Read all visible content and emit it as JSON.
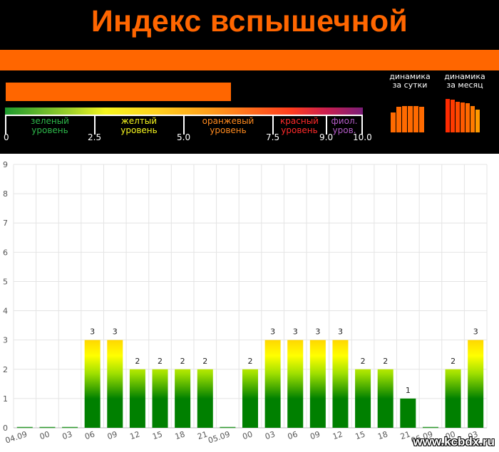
{
  "header": {
    "title": "Индекс вспышечной активности",
    "scale": {
      "levels": [
        {
          "label1": "зеленый",
          "label2": "уровень",
          "color": "#2db84a"
        },
        {
          "label1": "желтый",
          "label2": "уровень",
          "color": "#f5f51e"
        },
        {
          "label1": "оранжевый",
          "label2": "уровень",
          "color": "#ff8a1e"
        },
        {
          "label1": "красный",
          "label2": "уровень",
          "color": "#ff2a2a"
        },
        {
          "label1": "фиол.",
          "label2": "уров.",
          "color": "#b45cc8"
        }
      ],
      "ticks": [
        "0",
        "2.5",
        "5.0",
        "7.5",
        "9.0",
        "10.0"
      ],
      "tick_values": [
        0,
        2.5,
        5.0,
        7.5,
        9.0,
        10.0
      ],
      "max": 10.0
    },
    "current_index": 6.3,
    "dynamics_day": {
      "title1": "динамика",
      "title2": "за сутки",
      "values": [
        0.58,
        0.74,
        0.78,
        0.78,
        0.78,
        0.76
      ],
      "color": "#ff6a00"
    },
    "dynamics_month": {
      "title1": "динамика",
      "title2": "за месяц",
      "values": [
        0.98,
        0.96,
        0.9,
        0.88,
        0.85,
        0.78,
        0.66
      ],
      "colors": [
        "#ff2a00",
        "#ff3a00",
        "#ff4a00",
        "#ff5a00",
        "#ff6a00",
        "#ff7a00",
        "#ff9a00"
      ]
    }
  },
  "chart_data": {
    "type": "bar",
    "categories": [
      "04.09",
      "00",
      "03",
      "06",
      "09",
      "12",
      "15",
      "18",
      "21",
      "05.09",
      "00",
      "03",
      "06",
      "09",
      "12",
      "15",
      "18",
      "21",
      "06.09",
      "00",
      "03"
    ],
    "values": [
      0,
      0,
      0,
      3,
      3,
      2,
      2,
      2,
      2,
      0,
      2,
      3,
      3,
      3,
      3,
      2,
      2,
      1,
      0,
      2,
      3
    ],
    "ylim": [
      0,
      9
    ],
    "yticks": [
      "0",
      "1",
      "2",
      "3",
      "4",
      "5",
      "6",
      "7",
      "8",
      "9"
    ],
    "grid": true,
    "colors": {
      "low": "#008000",
      "mid": "#a0e000",
      "high": "#ffff00",
      "top": "#ffd700"
    }
  },
  "watermark": "www.kcbdx.ru"
}
